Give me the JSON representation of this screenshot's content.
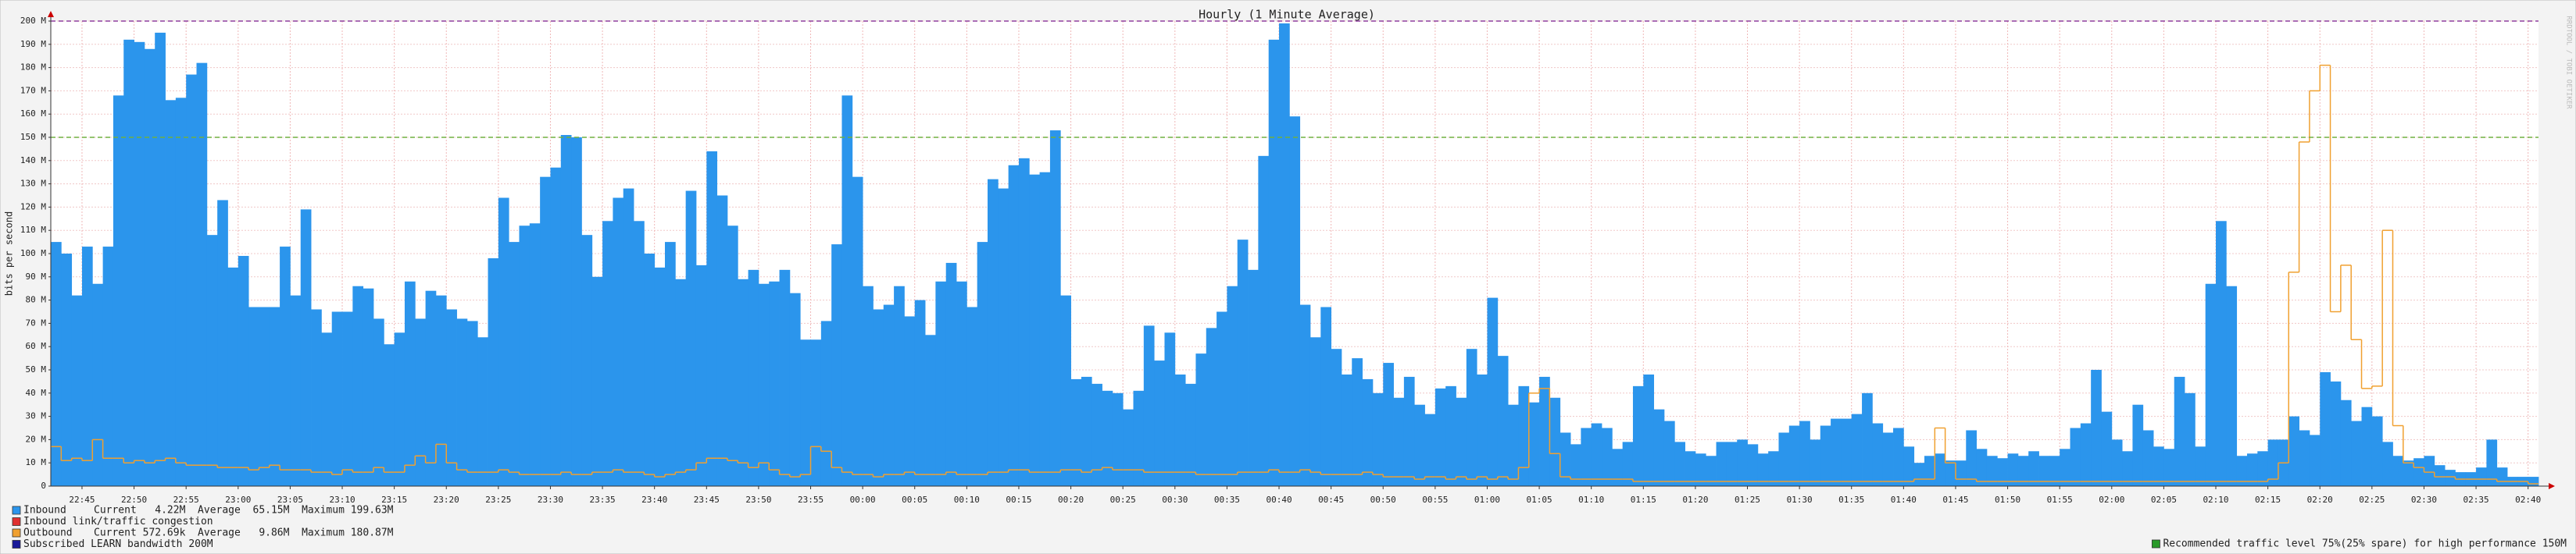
{
  "chart_data": {
    "type": "step",
    "title": "Hourly (1 Minute Average)",
    "y_label": "bits per second",
    "watermark": "RRDTOOL / TOBI OETIKER",
    "categories": [
      null,
      null,
      null,
      "22:45",
      null,
      null,
      null,
      null,
      "22:50",
      null,
      null,
      null,
      null,
      "22:55",
      null,
      null,
      null,
      null,
      "23:00",
      null,
      null,
      null,
      null,
      "23:05",
      null,
      null,
      null,
      null,
      "23:10",
      null,
      null,
      null,
      null,
      "23:15",
      null,
      null,
      null,
      null,
      "23:20",
      null,
      null,
      null,
      null,
      "23:25",
      null,
      null,
      null,
      null,
      "23:30",
      null,
      null,
      null,
      null,
      "23:35",
      null,
      null,
      null,
      null,
      "23:40",
      null,
      null,
      null,
      null,
      "23:45",
      null,
      null,
      null,
      null,
      "23:50",
      null,
      null,
      null,
      null,
      "23:55",
      null,
      null,
      null,
      null,
      "00:00",
      null,
      null,
      null,
      null,
      "00:05",
      null,
      null,
      null,
      null,
      "00:10",
      null,
      null,
      null,
      null,
      "00:15",
      null,
      null,
      null,
      null,
      "00:20",
      null,
      null,
      null,
      null,
      "00:25",
      null,
      null,
      null,
      null,
      "00:30",
      null,
      null,
      null,
      null,
      "00:35",
      null,
      null,
      null,
      null,
      "00:40",
      null,
      null,
      null,
      null,
      "00:45",
      null,
      null,
      null,
      null,
      "00:50",
      null,
      null,
      null,
      null,
      "00:55",
      null,
      null,
      null,
      null,
      "01:00",
      null,
      null,
      null,
      null,
      "01:05",
      null,
      null,
      null,
      null,
      "01:10",
      null,
      null,
      null,
      null,
      "01:15",
      null,
      null,
      null,
      null,
      "01:20",
      null,
      null,
      null,
      null,
      "01:25",
      null,
      null,
      null,
      null,
      "01:30",
      null,
      null,
      null,
      null,
      "01:35",
      null,
      null,
      null,
      null,
      "01:40",
      null,
      null,
      null,
      null,
      "01:45",
      null,
      null,
      null,
      null,
      "01:50",
      null,
      null,
      null,
      null,
      "01:55",
      null,
      null,
      null,
      null,
      "02:00",
      null,
      null,
      null,
      null,
      "02:05",
      null,
      null,
      null,
      null,
      "02:10",
      null,
      null,
      null,
      null,
      "02:15",
      null,
      null,
      null,
      null,
      "02:20",
      null,
      null,
      null,
      null,
      "02:25",
      null,
      null,
      null,
      null,
      "02:30",
      null,
      null,
      null,
      null,
      "02:35",
      null,
      null,
      null,
      null,
      "02:40"
    ],
    "series": [
      {
        "name": "Inbound",
        "stats": "Current   4.22M  Average  65.15M  Maximum 199.63M",
        "style": "area",
        "color": "#2b95ec",
        "values": [
          105,
          100,
          82,
          103,
          87,
          103,
          168,
          192,
          191,
          188,
          195,
          166,
          167,
          177,
          182,
          108,
          123,
          94,
          99,
          77,
          77,
          77,
          103,
          82,
          119,
          76,
          66,
          75,
          75,
          86,
          85,
          72,
          61,
          66,
          88,
          72,
          84,
          82,
          76,
          72,
          71,
          64,
          98,
          124,
          105,
          112,
          113,
          133,
          137,
          151,
          150,
          108,
          90,
          114,
          124,
          128,
          114,
          100,
          94,
          105,
          89,
          127,
          95,
          144,
          125,
          112,
          89,
          93,
          87,
          88,
          93,
          83,
          63,
          63,
          71,
          104,
          168,
          133,
          86,
          76,
          78,
          86,
          73,
          80,
          65,
          88,
          96,
          88,
          77,
          105,
          132,
          128,
          138,
          141,
          134,
          135,
          153,
          82,
          46,
          47,
          44,
          41,
          40,
          33,
          41,
          69,
          54,
          66,
          48,
          44,
          57,
          68,
          75,
          86,
          106,
          93,
          142,
          192,
          199,
          159,
          78,
          64,
          77,
          59,
          48,
          55,
          46,
          40,
          53,
          38,
          47,
          35,
          31,
          42,
          43,
          38,
          59,
          48,
          81,
          56,
          35,
          43,
          36,
          47,
          38,
          23,
          18,
          25,
          27,
          25,
          16,
          19,
          43,
          48,
          33,
          28,
          19,
          15,
          14,
          13,
          19,
          19,
          20,
          18,
          14,
          15,
          23,
          26,
          28,
          20,
          26,
          29,
          29,
          31,
          40,
          27,
          23,
          25,
          17,
          10,
          13,
          14,
          11,
          11,
          24,
          16,
          13,
          12,
          14,
          13,
          15,
          13,
          13,
          16,
          25,
          27,
          50,
          32,
          20,
          15,
          35,
          24,
          17,
          16,
          47,
          40,
          17,
          87,
          114,
          86,
          13,
          14,
          15,
          20,
          20,
          30,
          24,
          22,
          49,
          45,
          37,
          28,
          34,
          30,
          19,
          13,
          11,
          12,
          13,
          9,
          7,
          6,
          6,
          8,
          20,
          8,
          4,
          4,
          4
        ]
      },
      {
        "name": "Outbound",
        "stats": "Current 572.69k  Average   9.86M  Maximum 180.87M",
        "style": "line",
        "color": "#f0a030",
        "values": [
          17,
          11,
          12,
          11,
          20,
          12,
          12,
          10,
          11,
          10,
          11,
          12,
          10,
          9,
          9,
          9,
          8,
          8,
          8,
          7,
          8,
          9,
          7,
          7,
          7,
          6,
          6,
          5,
          7,
          6,
          6,
          8,
          6,
          6,
          9,
          13,
          10,
          18,
          10,
          7,
          6,
          6,
          6,
          7,
          6,
          5,
          5,
          5,
          5,
          6,
          5,
          5,
          6,
          6,
          7,
          6,
          6,
          5,
          4,
          5,
          6,
          7,
          10,
          12,
          12,
          11,
          10,
          8,
          10,
          7,
          5,
          4,
          5,
          17,
          15,
          8,
          6,
          5,
          5,
          4,
          5,
          5,
          6,
          5,
          5,
          5,
          6,
          5,
          5,
          5,
          6,
          6,
          7,
          7,
          6,
          6,
          6,
          7,
          7,
          6,
          7,
          8,
          7,
          7,
          7,
          6,
          6,
          6,
          6,
          6,
          5,
          5,
          5,
          5,
          6,
          6,
          6,
          7,
          6,
          6,
          7,
          6,
          5,
          5,
          5,
          5,
          6,
          5,
          4,
          4,
          4,
          3,
          4,
          4,
          3,
          4,
          3,
          4,
          3,
          4,
          3,
          8,
          40,
          42,
          14,
          4,
          3,
          3,
          3,
          3,
          3,
          3,
          2,
          2,
          2,
          2,
          2,
          2,
          2,
          2,
          2,
          2,
          2,
          2,
          2,
          2,
          2,
          2,
          2,
          2,
          2,
          2,
          2,
          2,
          2,
          2,
          2,
          2,
          2,
          3,
          3,
          25,
          10,
          3,
          3,
          2,
          2,
          2,
          2,
          2,
          2,
          2,
          2,
          2,
          2,
          2,
          2,
          2,
          2,
          2,
          2,
          2,
          2,
          2,
          2,
          2,
          2,
          2,
          2,
          2,
          2,
          2,
          2,
          3,
          10,
          92,
          148,
          170,
          181,
          75,
          95,
          63,
          42,
          43,
          110,
          26,
          10,
          8,
          6,
          4,
          4,
          3,
          3,
          3,
          3,
          2,
          2,
          2,
          1
        ]
      }
    ],
    "extra_legend": [
      {
        "name": "Inbound link/traffic congestion",
        "color": "#e03030"
      }
    ],
    "reference_lines": [
      {
        "name": "Subscribed LEARN bandwidth 200M",
        "value": 200,
        "color": "#1a1a9a",
        "line_color": "#9040a0",
        "side": "left"
      },
      {
        "name": "Recommended traffic level 75%(25% spare) for high performance 150M",
        "value": 150,
        "color": "#2a9a2a",
        "line_color": "#70b040",
        "side": "right"
      }
    ],
    "ylim": [
      0,
      200
    ],
    "yticks": [
      0,
      {
        "value": 10,
        "label": "10 M"
      },
      {
        "value": 20,
        "label": "20 M"
      },
      {
        "value": 30,
        "label": "30 M"
      },
      {
        "value": 40,
        "label": "40 M"
      },
      {
        "value": 50,
        "label": "50 M"
      },
      {
        "value": 60,
        "label": "60 M"
      },
      {
        "value": 70,
        "label": "70 M"
      },
      {
        "value": 80,
        "label": "80 M"
      },
      {
        "value": 90,
        "label": "90 M"
      },
      {
        "value": 100,
        "label": "100 M"
      },
      {
        "value": 110,
        "label": "110 M"
      },
      {
        "value": 120,
        "label": "120 M"
      },
      {
        "value": 130,
        "label": "130 M"
      },
      {
        "value": 140,
        "label": "140 M"
      },
      {
        "value": 150,
        "label": "150 M"
      },
      {
        "value": 160,
        "label": "160 M"
      },
      {
        "value": 170,
        "label": "170 M"
      },
      {
        "value": 180,
        "label": "180 M"
      },
      {
        "value": 190,
        "label": "190 M"
      },
      {
        "value": 200,
        "label": "200 M"
      }
    ],
    "grid": true
  }
}
